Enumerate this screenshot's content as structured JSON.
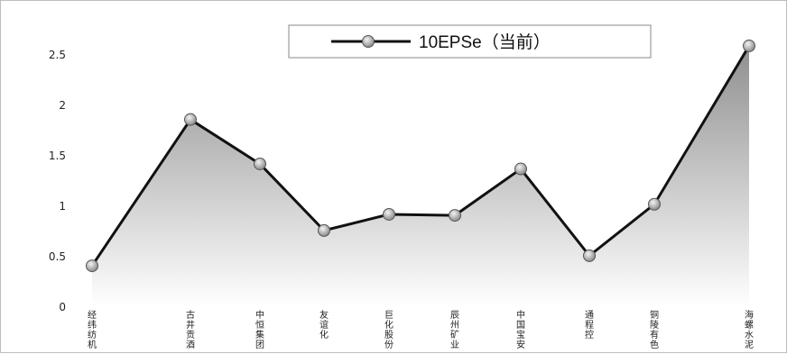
{
  "chart_data": {
    "type": "area",
    "title": "",
    "xlabel": "",
    "ylabel": "",
    "ylim": [
      0,
      2.5
    ],
    "y_ticks": [
      "0",
      "0.5",
      "1",
      "1.5",
      "2",
      "2.5"
    ],
    "categories": [
      "经纬纺机",
      "古井贡酒",
      "中恒集团",
      "友谊化",
      "巨化股份",
      "辰州矿业",
      "中国宝安",
      "通程控",
      "铜陵有色",
      "海螺水泥"
    ],
    "series": [
      {
        "name": "10EPSe（当前）",
        "values": [
          0.41,
          1.86,
          1.42,
          0.76,
          0.92,
          0.91,
          1.37,
          0.51,
          1.02,
          2.59
        ]
      }
    ],
    "legend_position": "top",
    "grid": false,
    "colors": {
      "line": "#111111",
      "fill_top": "#8f8f8f",
      "fill_bottom": "#ffffff",
      "marker": "#b8b8b8"
    }
  }
}
